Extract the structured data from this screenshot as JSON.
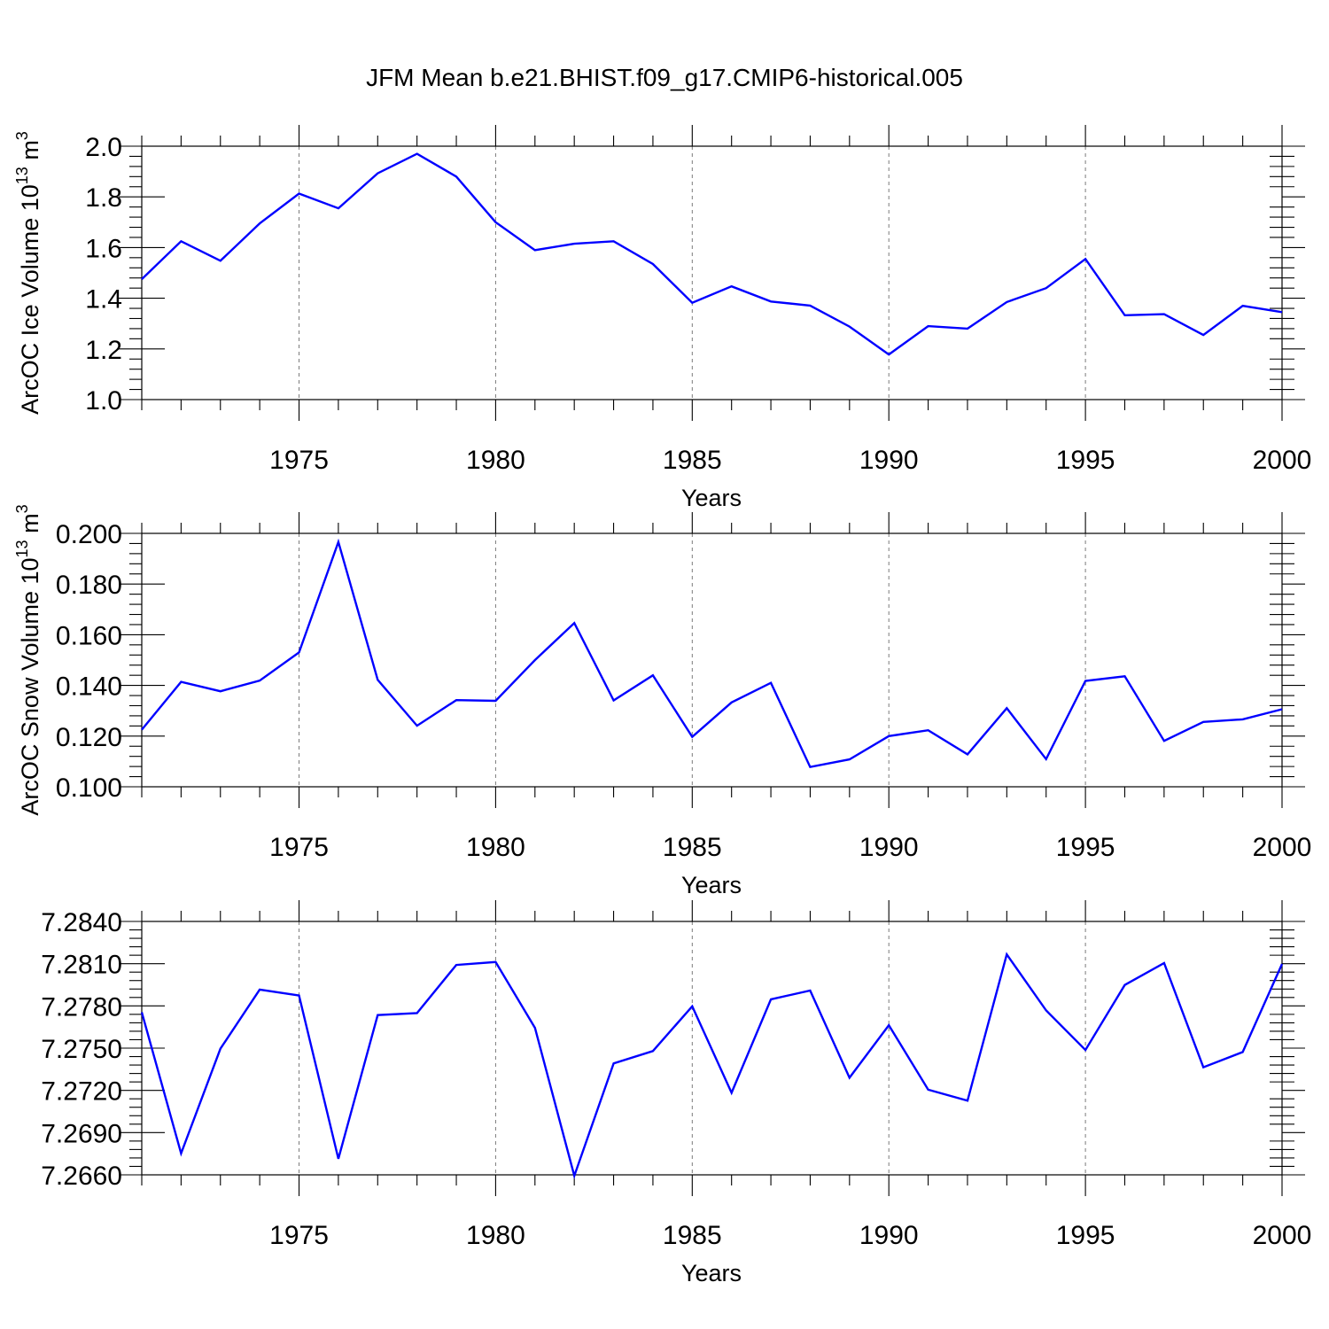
{
  "figure": {
    "title": "JFM Mean b.e21.BHIST.f09_g17.CMIP6-historical.005"
  },
  "chart_data": [
    {
      "type": "line",
      "xlabel": "Years",
      "ylabel": "ArcOC Ice Volume 10",
      "ylabel_exp1": "13",
      "ylabel_unit": " m",
      "ylabel_exp2": "3",
      "xlim": [
        1971,
        2000
      ],
      "ylim": [
        1.0,
        2.0
      ],
      "xticks": [
        "1975",
        "1980",
        "1985",
        "1990",
        "1995",
        "2000"
      ],
      "yticks": [
        "1.0",
        "1.2",
        "1.4",
        "1.6",
        "1.8",
        "2.0"
      ],
      "grid": "vertical dashed at major x ticks",
      "color": "#0000ff",
      "x": [
        1971,
        1972,
        1973,
        1974,
        1975,
        1976,
        1977,
        1978,
        1979,
        1980,
        1981,
        1982,
        1983,
        1984,
        1985,
        1986,
        1987,
        1988,
        1989,
        1990,
        1991,
        1992,
        1993,
        1994,
        1995,
        1996,
        1997,
        1998,
        1999,
        2000
      ],
      "y": [
        1.475,
        1.625,
        1.548,
        1.695,
        1.813,
        1.755,
        1.893,
        1.97,
        1.88,
        1.7,
        1.59,
        1.615,
        1.625,
        1.535,
        1.382,
        1.447,
        1.387,
        1.371,
        1.288,
        1.178,
        1.29,
        1.28,
        1.385,
        1.44,
        1.555,
        1.333,
        1.337,
        1.255,
        1.37,
        1.345
      ]
    },
    {
      "type": "line",
      "xlabel": "Years",
      "ylabel": "ArcOC Snow Volume 10",
      "ylabel_exp1": "13",
      "ylabel_unit": " m",
      "ylabel_exp2": "3",
      "xlim": [
        1971,
        2000
      ],
      "ylim": [
        0.1,
        0.2
      ],
      "xticks": [
        "1975",
        "1980",
        "1985",
        "1990",
        "1995",
        "2000"
      ],
      "yticks": [
        "0.100",
        "0.120",
        "0.140",
        "0.160",
        "0.180",
        "0.200"
      ],
      "grid": "vertical dashed at major x ticks",
      "color": "#0000ff",
      "x": [
        1971,
        1972,
        1973,
        1974,
        1975,
        1976,
        1977,
        1978,
        1979,
        1980,
        1981,
        1982,
        1983,
        1984,
        1985,
        1986,
        1987,
        1988,
        1989,
        1990,
        1991,
        1992,
        1993,
        1994,
        1995,
        1996,
        1997,
        1998,
        1999,
        2000
      ],
      "y": [
        0.1225,
        0.1414,
        0.1377,
        0.1419,
        0.153,
        0.1966,
        0.1422,
        0.1241,
        0.1342,
        0.1339,
        0.15,
        0.1646,
        0.1341,
        0.144,
        0.1197,
        0.1333,
        0.141,
        0.1078,
        0.1108,
        0.12,
        0.1223,
        0.1128,
        0.131,
        0.1109,
        0.1418,
        0.1436,
        0.1181,
        0.1256,
        0.1266,
        0.1306
      ]
    },
    {
      "type": "line",
      "xlabel": "Years",
      "ylabel": "",
      "xlim": [
        1971,
        2000
      ],
      "ylim": [
        7.266,
        7.284
      ],
      "xticks": [
        "1975",
        "1980",
        "1985",
        "1990",
        "1995",
        "2000"
      ],
      "yticks": [
        "7.2660",
        "7.2690",
        "7.2720",
        "7.2750",
        "7.2780",
        "7.2810",
        "7.2840"
      ],
      "grid": "vertical dashed at major x ticks",
      "color": "#0000ff",
      "x": [
        1971,
        1972,
        1973,
        1974,
        1975,
        1976,
        1977,
        1978,
        1979,
        1980,
        1981,
        1982,
        1983,
        1984,
        1985,
        1986,
        1987,
        1988,
        1989,
        1990,
        1991,
        1992,
        1993,
        1994,
        1995,
        1996,
        1997,
        1998,
        1999,
        2000
      ],
      "y": [
        7.27755,
        7.26752,
        7.27496,
        7.27916,
        7.27874,
        7.26714,
        7.27735,
        7.27749,
        7.28091,
        7.28112,
        7.27644,
        7.26593,
        7.27392,
        7.27479,
        7.27797,
        7.27183,
        7.27847,
        7.27909,
        7.2729,
        7.27663,
        7.27205,
        7.27127,
        7.28166,
        7.27768,
        7.27487,
        7.27949,
        7.28104,
        7.27364,
        7.27472,
        7.28098
      ]
    }
  ]
}
